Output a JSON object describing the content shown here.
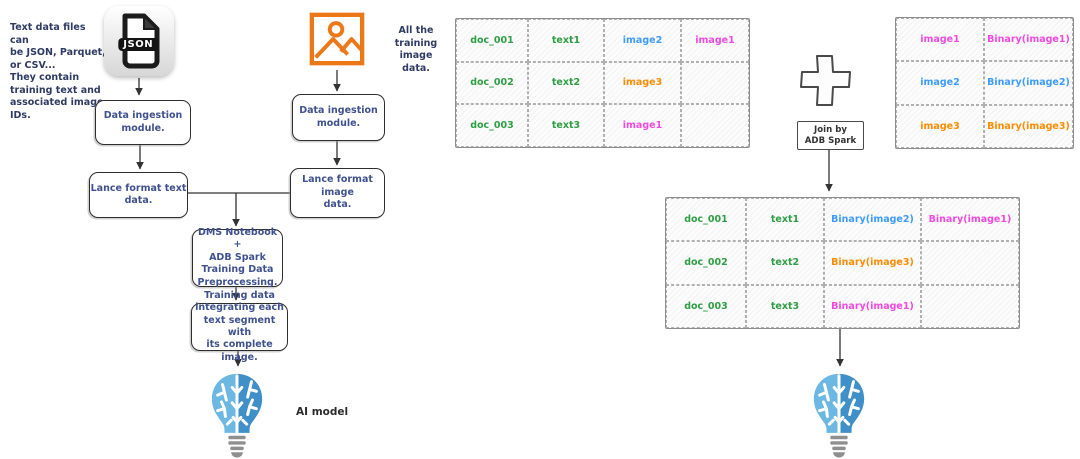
{
  "palette": {
    "green": "#2f9e44",
    "blue": "#3e9bff",
    "orange": "#ff8c00",
    "magenta": "#f24ae1",
    "navy": "#3f518f",
    "icon_orange": "#ec7818",
    "bulb_light": "#6cb8e2",
    "bulb_dark": "#3f90c8"
  },
  "notes": {
    "text_files": "Text data files can\nbe JSON, Parquet,\nor CSV...\nThey contain\ntraining text and\nassociated image\nIDs.",
    "image_data": "All the\ntraining\nimage\ndata.",
    "ai_model": "AI model"
  },
  "icons": {
    "json_label": "JSON"
  },
  "flow_boxes": {
    "ingest_text": "Data ingestion\nmodule.",
    "ingest_image": "Data ingestion\nmodule.",
    "lance_text": "Lance format text\ndata.",
    "lance_image": "Lance format image\ndata.",
    "dms": "DMS Notebook +\nADB Spark\nTraining Data\nPreprocessing.",
    "training": "Training data\nintegrating each\ntext segment with\nits complete image."
  },
  "join": {
    "label": "Join by\nADB Spark"
  },
  "tables": {
    "text_table": {
      "rows": [
        [
          {
            "t": "doc_001",
            "c": "green"
          },
          {
            "t": "text1",
            "c": "green"
          },
          {
            "t": "image2",
            "c": "blue"
          },
          {
            "t": "image1",
            "c": "magenta"
          }
        ],
        [
          {
            "t": "doc_002",
            "c": "green"
          },
          {
            "t": "text2",
            "c": "green"
          },
          {
            "t": "image3",
            "c": "orange"
          },
          {
            "t": "",
            "c": ""
          }
        ],
        [
          {
            "t": "doc_003",
            "c": "green"
          },
          {
            "t": "text3",
            "c": "green"
          },
          {
            "t": "image1",
            "c": "magenta"
          },
          {
            "t": "",
            "c": ""
          }
        ]
      ]
    },
    "image_table": {
      "rows": [
        [
          {
            "t": "image1",
            "c": "magenta"
          },
          {
            "t": "Binary(image1)",
            "c": "magenta"
          }
        ],
        [
          {
            "t": "image2",
            "c": "blue"
          },
          {
            "t": "Binary(image2)",
            "c": "blue"
          }
        ],
        [
          {
            "t": "image3",
            "c": "orange"
          },
          {
            "t": "Binary(image3)",
            "c": "orange"
          }
        ]
      ]
    },
    "joined_table": {
      "rows": [
        [
          {
            "t": "doc_001",
            "c": "green"
          },
          {
            "t": "text1",
            "c": "green"
          },
          {
            "t": "Binary(image2)",
            "c": "blue"
          },
          {
            "t": "Binary(image1)",
            "c": "magenta"
          }
        ],
        [
          {
            "t": "doc_002",
            "c": "green"
          },
          {
            "t": "text2",
            "c": "green"
          },
          {
            "t": "Binary(image3)",
            "c": "orange"
          },
          {
            "t": "",
            "c": ""
          }
        ],
        [
          {
            "t": "doc_003",
            "c": "green"
          },
          {
            "t": "text3",
            "c": "green"
          },
          {
            "t": "Binary(image1)",
            "c": "magenta"
          },
          {
            "t": "",
            "c": ""
          }
        ]
      ]
    }
  }
}
